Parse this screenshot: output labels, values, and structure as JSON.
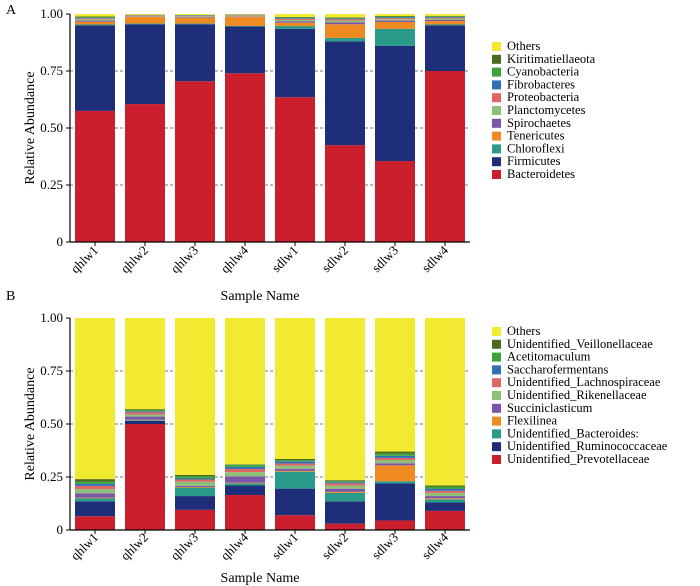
{
  "colors": {
    "Others": "#f2ea30",
    "Kiritimatiellaeota": "#4a6a1e",
    "Cyanobacteria": "#3aa33a",
    "Fibrobacteres": "#2f6fb5",
    "Proteobacteria": "#e06666",
    "Planctomycetes": "#8fc07a",
    "Spirochaetes": "#7b55a8",
    "Tenericutes": "#ef8a22",
    "Chloroflexi": "#2a9a8a",
    "Firmicutes": "#1f2e78",
    "Bacteroidetes": "#cc1f2e",
    "Unidentified_Veillonellaceae": "#4a6a1e",
    "Acetitomaculum": "#3aa33a",
    "Saccharofermentans": "#2f6fb5",
    "Unidentified_Lachnospiraceae": "#e06666",
    "Unidentified_Rikenellaceae": "#8fc07a",
    "Succiniclasticum": "#7b55a8",
    "Flexilinea": "#ef8a22",
    "Unidentified_Bacteroides:": "#2a9a8a",
    "Unidentified_Ruminococcaceae": "#1f2e78",
    "Unidentified_Prevotellaceae": "#cc1f2e"
  },
  "chart_data": [
    {
      "type": "bar",
      "stacked": true,
      "panel_label": "A",
      "title": "",
      "xlabel": "Sample Name",
      "ylabel": "Relative Abundance",
      "ylim": [
        0,
        1
      ],
      "yticks": [
        "0",
        "0.25",
        "0.50",
        "0.75",
        "1.00"
      ],
      "ytick_values": [
        0,
        0.25,
        0.5,
        0.75,
        1.0
      ],
      "grid": "dashed horizontal at 0.25, 0.50, 0.75",
      "legend_placement": "right",
      "categories": [
        "qhlw1",
        "qhlw2",
        "qhlw3",
        "qhlw4",
        "sdlw1",
        "sdlw2",
        "sdlw3",
        "sdlw4"
      ],
      "legend_order": [
        "Others",
        "Kiritimatiellaeota",
        "Cyanobacteria",
        "Fibrobacteres",
        "Proteobacteria",
        "Planctomycetes",
        "Spirochaetes",
        "Tenericutes",
        "Chloroflexi",
        "Firmicutes",
        "Bacteroidetes"
      ],
      "series": [
        {
          "name": "Bacteroidetes",
          "values": [
            0.575,
            0.605,
            0.705,
            0.74,
            0.635,
            0.425,
            0.355,
            0.75
          ]
        },
        {
          "name": "Firmicutes",
          "values": [
            0.375,
            0.35,
            0.25,
            0.205,
            0.3,
            0.455,
            0.505,
            0.2
          ]
        },
        {
          "name": "Chloroflexi",
          "values": [
            0.004,
            0.003,
            0.003,
            0.003,
            0.012,
            0.015,
            0.075,
            0.004
          ]
        },
        {
          "name": "Tenericutes",
          "values": [
            0.012,
            0.03,
            0.025,
            0.04,
            0.015,
            0.06,
            0.03,
            0.015
          ]
        },
        {
          "name": "Spirochaetes",
          "values": [
            0.005,
            0.002,
            0.003,
            0.002,
            0.006,
            0.008,
            0.006,
            0.005
          ]
        },
        {
          "name": "Planctomycetes",
          "values": [
            0.006,
            0.002,
            0.004,
            0.003,
            0.006,
            0.008,
            0.006,
            0.006
          ]
        },
        {
          "name": "Proteobacteria",
          "values": [
            0.004,
            0.002,
            0.002,
            0.002,
            0.005,
            0.006,
            0.005,
            0.004
          ]
        },
        {
          "name": "Fibrobacteres",
          "values": [
            0.003,
            0.001,
            0.002,
            0.001,
            0.003,
            0.003,
            0.004,
            0.003
          ]
        },
        {
          "name": "Cyanobacteria",
          "values": [
            0.003,
            0.001,
            0.001,
            0.001,
            0.003,
            0.003,
            0.003,
            0.003
          ]
        },
        {
          "name": "Kiritimatiellaeota",
          "values": [
            0.002,
            0.001,
            0.001,
            0.001,
            0.002,
            0.002,
            0.002,
            0.002
          ]
        },
        {
          "name": "Others",
          "values": [
            0.011,
            0.003,
            0.004,
            0.002,
            0.013,
            0.015,
            0.009,
            0.008
          ]
        }
      ]
    },
    {
      "type": "bar",
      "stacked": true,
      "panel_label": "B",
      "title": "",
      "xlabel": "Sample Name",
      "ylabel": "Relative Abundance",
      "ylim": [
        0,
        1
      ],
      "yticks": [
        "0",
        "0.25",
        "0.50",
        "0.75",
        "1.00"
      ],
      "ytick_values": [
        0,
        0.25,
        0.5,
        0.75,
        1.0
      ],
      "grid": "dashed horizontal at 0.25, 0.50, 0.75",
      "legend_placement": "right",
      "categories": [
        "qhlw1",
        "qhlw2",
        "qhlw3",
        "qhlw4",
        "sdlw1",
        "sdlw2",
        "sdlw3",
        "sdlw4"
      ],
      "legend_order": [
        "Others",
        "Unidentified_Veillonellaceae",
        "Acetitomaculum",
        "Saccharofermentans",
        "Unidentified_Lachnospiraceae",
        "Unidentified_Rikenellaceae",
        "Succiniclasticum",
        "Flexilinea",
        "Unidentified_Bacteroides:",
        "Unidentified_Ruminococcaceae",
        "Unidentified_Prevotellaceae"
      ],
      "series": [
        {
          "name": "Unidentified_Prevotellaceae",
          "values": [
            0.065,
            0.5,
            0.095,
            0.165,
            0.07,
            0.03,
            0.045,
            0.09
          ]
        },
        {
          "name": "Unidentified_Ruminococcaceae",
          "values": [
            0.07,
            0.015,
            0.065,
            0.045,
            0.125,
            0.105,
            0.175,
            0.04
          ]
        },
        {
          "name": "Unidentified_Bacteroides:",
          "values": [
            0.015,
            0.003,
            0.04,
            0.01,
            0.08,
            0.04,
            0.01,
            0.015
          ]
        },
        {
          "name": "Flexilinea",
          "values": [
            0.003,
            0.002,
            0.003,
            0.003,
            0.004,
            0.005,
            0.075,
            0.005
          ]
        },
        {
          "name": "Succiniclasticum",
          "values": [
            0.02,
            0.015,
            0.005,
            0.03,
            0.01,
            0.015,
            0.01,
            0.01
          ]
        },
        {
          "name": "Unidentified_Rikenellaceae",
          "values": [
            0.02,
            0.01,
            0.02,
            0.02,
            0.015,
            0.015,
            0.015,
            0.015
          ]
        },
        {
          "name": "Unidentified_Lachnospiraceae",
          "values": [
            0.015,
            0.01,
            0.01,
            0.015,
            0.01,
            0.01,
            0.01,
            0.01
          ]
        },
        {
          "name": "Saccharofermentans",
          "values": [
            0.01,
            0.005,
            0.005,
            0.01,
            0.01,
            0.005,
            0.01,
            0.01
          ]
        },
        {
          "name": "Acetitomaculum",
          "values": [
            0.01,
            0.005,
            0.01,
            0.01,
            0.005,
            0.005,
            0.01,
            0.01
          ]
        },
        {
          "name": "Unidentified_Veillonellaceae",
          "values": [
            0.012,
            0.005,
            0.007,
            0.002,
            0.006,
            0.005,
            0.01,
            0.005
          ]
        },
        {
          "name": "Others",
          "values": [
            0.76,
            0.43,
            0.74,
            0.69,
            0.665,
            0.765,
            0.63,
            0.79
          ]
        }
      ]
    }
  ]
}
